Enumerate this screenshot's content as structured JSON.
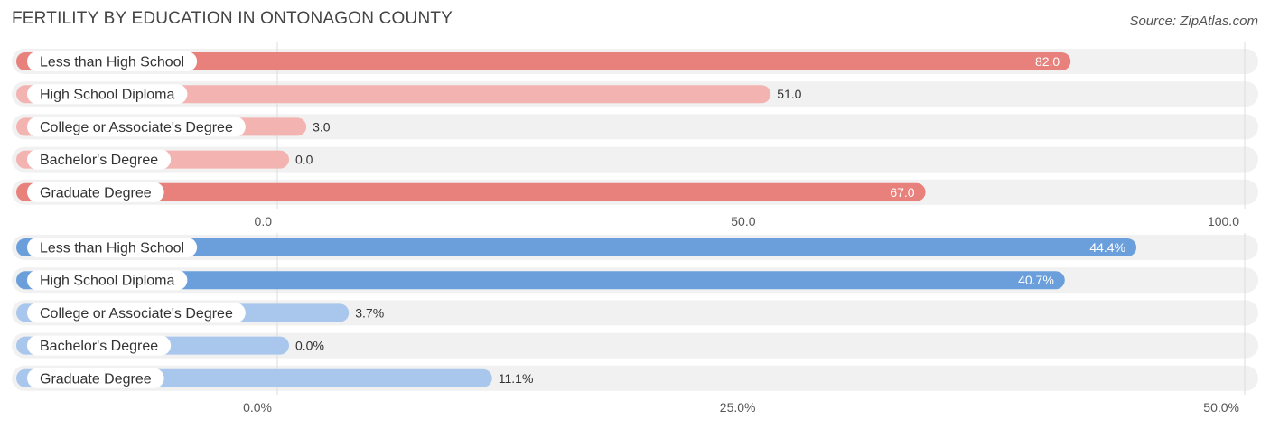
{
  "title": "FERTILITY BY EDUCATION IN ONTONAGON COUNTY",
  "source": "Source: ZipAtlas.com",
  "colors": {
    "red_strong": "#E8807C",
    "red_light": "#F2B3B1",
    "blue_strong": "#6A9FDC",
    "blue_light": "#A9C7EC",
    "track": "#F1F1F1",
    "grid": "#DDDDDD"
  },
  "chart_data": [
    {
      "type": "bar",
      "orientation": "horizontal",
      "title": "FERTILITY BY EDUCATION IN ONTONAGON COUNTY",
      "categories": [
        "Less than High School",
        "High School Diploma",
        "College or Associate's Degree",
        "Bachelor's Degree",
        "Graduate Degree"
      ],
      "values": [
        82.0,
        51.0,
        3.0,
        0.0,
        67.0
      ],
      "value_labels": [
        "82.0",
        "51.0",
        "3.0",
        "0.0",
        "67.0"
      ],
      "xlim": [
        0,
        100
      ],
      "ticks": [
        0,
        50,
        100
      ],
      "tick_labels": [
        "0.0",
        "50.0",
        "100.0"
      ],
      "color": "red"
    },
    {
      "type": "bar",
      "orientation": "horizontal",
      "categories": [
        "Less than High School",
        "High School Diploma",
        "College or Associate's Degree",
        "Bachelor's Degree",
        "Graduate Degree"
      ],
      "values": [
        44.4,
        40.7,
        3.7,
        0.0,
        11.1
      ],
      "value_labels": [
        "44.4%",
        "40.7%",
        "3.7%",
        "0.0%",
        "11.1%"
      ],
      "xlim": [
        0,
        50
      ],
      "ticks": [
        0,
        25,
        50
      ],
      "tick_labels": [
        "0.0%",
        "25.0%",
        "50.0%"
      ],
      "color": "blue"
    }
  ]
}
